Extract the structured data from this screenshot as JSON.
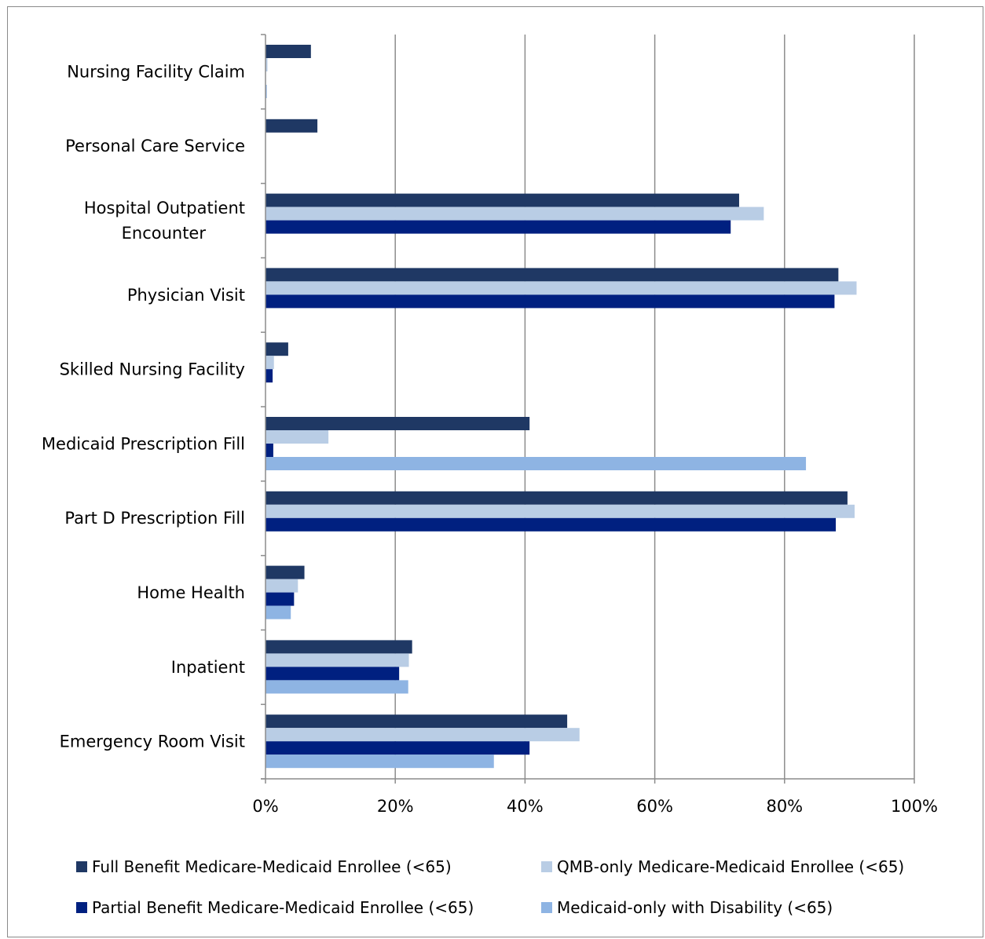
{
  "chart_data": {
    "type": "bar",
    "orientation": "horizontal",
    "categories": [
      "Nursing Facility Claim",
      "Personal Care Service",
      "Hospital Outpatient Encounter",
      "Physician Visit",
      "Skilled Nursing Facility",
      "Medicaid Prescription Fill",
      "Part D Prescription Fill",
      "Home Health",
      "Inpatient",
      "Emergency Room Visit"
    ],
    "series": [
      {
        "name": "Full Benefit Medicare-Medicaid Enrollee (<65)",
        "color": "#1f3864",
        "values": [
          7.0,
          8.0,
          73.0,
          88.3,
          3.5,
          40.7,
          89.7,
          6.0,
          22.6,
          46.5
        ]
      },
      {
        "name": "QMB-only Medicare-Medicaid Enrollee (<65)",
        "color": "#b9cde5",
        "values": [
          0.3,
          0,
          76.8,
          91.1,
          1.3,
          9.7,
          90.8,
          5.0,
          22.1,
          48.4
        ]
      },
      {
        "name": "Partial Benefit Medicare-Medicaid Enrollee (<65)",
        "color": "#002080",
        "values": [
          0,
          0,
          71.7,
          87.7,
          1.1,
          1.2,
          87.9,
          4.4,
          20.6,
          40.7
        ]
      },
      {
        "name": "Medicaid-only with Disability (<65)",
        "color": "#8eb4e3",
        "values": [
          0.2,
          0,
          0,
          0,
          0,
          83.3,
          0,
          3.9,
          22.0,
          35.2
        ]
      }
    ],
    "x_tick_labels": [
      "0%",
      "20%",
      "40%",
      "60%",
      "80%",
      "100%"
    ],
    "xlim": [
      0,
      100
    ],
    "grid": true,
    "legend_position": "bottom"
  }
}
